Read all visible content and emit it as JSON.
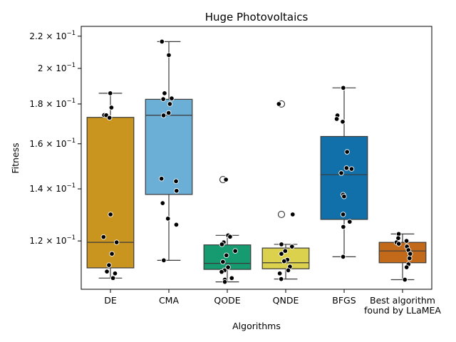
{
  "chart_data": {
    "type": "box",
    "title": "Huge Photovoltaics",
    "xlabel": "Algorithms",
    "ylabel": "Fitness",
    "yscale": "log",
    "ylim": [
      0.104,
      0.2265
    ],
    "yticks": [
      {
        "value": 0.12,
        "mantissa": "1.2",
        "base": "10",
        "exp": "−1"
      },
      {
        "value": 0.14,
        "mantissa": "1.4",
        "base": "10",
        "exp": "−1"
      },
      {
        "value": 0.16,
        "mantissa": "1.6",
        "base": "10",
        "exp": "−1"
      },
      {
        "value": 0.18,
        "mantissa": "1.8",
        "base": "10",
        "exp": "−1"
      },
      {
        "value": 0.2,
        "mantissa": "2",
        "base": "10",
        "exp": "−1"
      },
      {
        "value": 0.22,
        "mantissa": "2.2",
        "base": "10",
        "exp": "−1"
      }
    ],
    "categories": [
      {
        "label": [
          "DE"
        ],
        "color": "#c9951e",
        "whisker_low": 0.1075,
        "q1": 0.1108,
        "median": 0.1195,
        "q3": 0.173,
        "whisker_high": 0.1858,
        "outliers": [],
        "points": [
          0.1858,
          0.1781,
          0.1742,
          0.1741,
          0.1728,
          0.1298,
          0.1214,
          0.1195,
          0.1155,
          0.1117,
          0.1096,
          0.109,
          0.1075
        ]
      },
      {
        "label": [
          "CMA"
        ],
        "color": "#6baed6",
        "whisker_low": 0.1133,
        "q1": 0.1377,
        "median": 0.1741,
        "q3": 0.1825,
        "whisker_high": 0.2165,
        "outliers": [],
        "points": [
          0.2165,
          0.208,
          0.1858,
          0.183,
          0.1826,
          0.18,
          0.1753,
          0.174,
          0.1443,
          0.1432,
          0.1392,
          0.1342,
          0.1282,
          0.1259,
          0.1133
        ]
      },
      {
        "label": [
          "QODE"
        ],
        "color": "#159b6f",
        "whisker_low": 0.1063,
        "q1": 0.1103,
        "median": 0.1123,
        "q3": 0.1186,
        "whisker_high": 0.122,
        "outliers": [
          0.1439
        ],
        "points": [
          0.1439,
          0.122,
          0.1215,
          0.1195,
          0.1188,
          0.1165,
          0.115,
          0.1128,
          0.111,
          0.11,
          0.1095,
          0.1075,
          0.107,
          0.1063
        ]
      },
      {
        "label": [
          "QNDE"
        ],
        "color": "#dcd14d",
        "whisker_low": 0.1072,
        "q1": 0.1105,
        "median": 0.1125,
        "q3": 0.1175,
        "whisker_high": 0.1188,
        "outliers": [
          0.18,
          0.1298
        ],
        "points": [
          0.18,
          0.1298,
          0.1188,
          0.118,
          0.1165,
          0.1155,
          0.1135,
          0.113,
          0.1112,
          0.11,
          0.109,
          0.1072
        ]
      },
      {
        "label": [
          "BFGS"
        ],
        "color": "#1170aa",
        "whisker_low": 0.1145,
        "q1": 0.1279,
        "median": 0.146,
        "q3": 0.1635,
        "whisker_high": 0.1888,
        "outliers": [],
        "points": [
          0.1888,
          0.174,
          0.1722,
          0.1708,
          0.1562,
          0.1489,
          0.1485,
          0.1467,
          0.1376,
          0.1369,
          0.1298,
          0.127,
          0.1251,
          0.1145
        ]
      },
      {
        "label": [
          "Best algorithm",
          "found by LLaMEA"
        ],
        "color": "#c26a1a",
        "whisker_low": 0.107,
        "q1": 0.1125,
        "median": 0.1165,
        "q3": 0.1195,
        "whisker_high": 0.1225,
        "outliers": [],
        "points": [
          0.1225,
          0.121,
          0.12,
          0.1195,
          0.119,
          0.118,
          0.1168,
          0.1155,
          0.114,
          0.112,
          0.111,
          0.107
        ]
      }
    ]
  }
}
